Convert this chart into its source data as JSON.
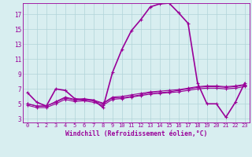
{
  "xlabel": "Windchill (Refroidissement éolien,°C)",
  "background_color": "#d8eef0",
  "line_color": "#990099",
  "grid_color": "#b0d4d8",
  "xlim": [
    -0.5,
    23.5
  ],
  "ylim": [
    2.5,
    18.5
  ],
  "yticks": [
    3,
    5,
    7,
    9,
    11,
    13,
    15,
    17
  ],
  "xticks": [
    0,
    1,
    2,
    3,
    4,
    5,
    6,
    7,
    8,
    9,
    10,
    11,
    12,
    13,
    14,
    15,
    16,
    17,
    18,
    19,
    20,
    21,
    22,
    23
  ],
  "lines": [
    {
      "x": [
        0,
        1,
        2,
        3,
        4,
        5,
        6,
        7,
        8,
        9,
        10,
        11,
        12,
        13,
        14,
        15,
        16,
        17,
        18,
        19,
        20,
        21,
        22,
        23
      ],
      "y": [
        6.5,
        5.2,
        4.7,
        7.0,
        6.8,
        5.7,
        5.5,
        5.5,
        4.5,
        9.2,
        12.3,
        14.8,
        16.3,
        18.0,
        18.4,
        18.5,
        17.2,
        15.8,
        7.8,
        5.0,
        5.0,
        3.2,
        5.2,
        7.8
      ],
      "lw": 1.2
    },
    {
      "x": [
        0,
        1,
        2,
        3,
        4,
        5,
        6,
        7,
        8,
        9,
        10,
        11,
        12,
        13,
        14,
        15,
        16,
        17,
        18,
        19,
        20,
        21,
        22,
        23
      ],
      "y": [
        5.0,
        4.7,
        4.7,
        5.2,
        5.8,
        5.5,
        5.6,
        5.4,
        5.0,
        5.8,
        5.8,
        6.0,
        6.2,
        6.5,
        6.5,
        6.6,
        6.8,
        7.0,
        7.2,
        7.3,
        7.3,
        7.2,
        7.3,
        7.5
      ],
      "lw": 0.8
    },
    {
      "x": [
        0,
        1,
        2,
        3,
        4,
        5,
        6,
        7,
        8,
        9,
        10,
        11,
        12,
        13,
        14,
        15,
        16,
        17,
        18,
        19,
        20,
        21,
        22,
        23
      ],
      "y": [
        5.0,
        4.7,
        4.7,
        5.3,
        5.9,
        5.6,
        5.7,
        5.5,
        5.1,
        5.9,
        6.0,
        6.2,
        6.4,
        6.6,
        6.7,
        6.8,
        6.9,
        7.1,
        7.3,
        7.4,
        7.4,
        7.3,
        7.4,
        7.6
      ],
      "lw": 0.8
    },
    {
      "x": [
        0,
        1,
        2,
        3,
        4,
        5,
        6,
        7,
        8,
        9,
        10,
        11,
        12,
        13,
        14,
        15,
        16,
        17,
        18,
        19,
        20,
        21,
        22,
        23
      ],
      "y": [
        4.8,
        4.5,
        4.5,
        5.0,
        5.6,
        5.3,
        5.4,
        5.2,
        4.8,
        5.6,
        5.7,
        5.9,
        6.1,
        6.3,
        6.4,
        6.5,
        6.6,
        6.8,
        7.0,
        7.1,
        7.1,
        7.0,
        7.1,
        7.3
      ],
      "lw": 0.8
    }
  ]
}
